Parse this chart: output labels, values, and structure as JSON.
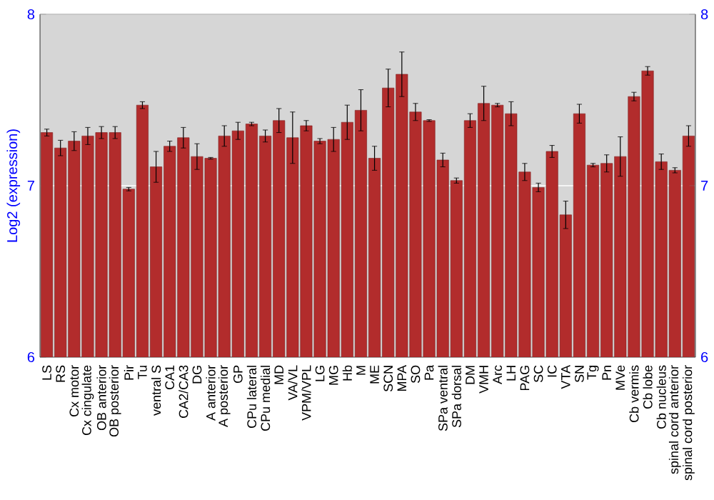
{
  "chart_data": {
    "type": "bar",
    "ylabel": "Log2 (expression)",
    "categories": [
      "LS",
      "RS",
      "Cx motor",
      "Cx cingulate",
      "OB anterior",
      "OB posterior",
      "Pir",
      "Tu",
      "ventral S",
      "CA1",
      "CA2/CA3",
      "DG",
      "A anterior",
      "A posterior",
      "GP",
      "CPu lateral",
      "CPu medial",
      "MD",
      "VA/VL",
      "VPM/VPL",
      "LG",
      "MG",
      "Hb",
      "M",
      "ME",
      "SCN",
      "MPA",
      "SO",
      "Pa",
      "SPa ventral",
      "SPa dorsal",
      "DM",
      "VMH",
      "Arc",
      "LH",
      "PAG",
      "SC",
      "IC",
      "VTA",
      "SN",
      "Tg",
      "Pn",
      "MVe",
      "Cb vermis",
      "Cb lobe",
      "Cb nucleus",
      "spinal cord anterior",
      "spinal cord posterior"
    ],
    "values": [
      7.31,
      7.22,
      7.26,
      7.29,
      7.31,
      7.31,
      6.98,
      7.47,
      7.11,
      7.23,
      7.28,
      7.17,
      7.16,
      7.29,
      7.32,
      7.36,
      7.29,
      7.38,
      7.28,
      7.35,
      7.26,
      7.27,
      7.37,
      7.44,
      7.16,
      7.57,
      7.65,
      7.43,
      7.38,
      7.15,
      7.03,
      7.38,
      7.48,
      7.47,
      7.42,
      7.08,
      6.99,
      7.2,
      6.83,
      7.42,
      7.12,
      7.13,
      7.17,
      7.52,
      7.67,
      7.14,
      7.09,
      7.29
    ],
    "errors": [
      0.02,
      0.045,
      0.055,
      0.05,
      0.035,
      0.035,
      0.01,
      0.02,
      0.09,
      0.03,
      0.06,
      0.075,
      0.005,
      0.06,
      0.05,
      0.01,
      0.035,
      0.07,
      0.15,
      0.03,
      0.015,
      0.07,
      0.1,
      0.12,
      0.07,
      0.11,
      0.13,
      0.05,
      0.005,
      0.04,
      0.015,
      0.04,
      0.1,
      0.01,
      0.07,
      0.05,
      0.025,
      0.035,
      0.08,
      0.055,
      0.01,
      0.05,
      0.115,
      0.025,
      0.025,
      0.045,
      0.015,
      0.06
    ],
    "color": "#b22c2c",
    "ylim": [
      6,
      8
    ],
    "yticks": [
      6,
      7,
      8
    ],
    "y2lim": [
      6,
      8
    ],
    "y2ticks": [
      6,
      7,
      8
    ],
    "grid": "y"
  }
}
